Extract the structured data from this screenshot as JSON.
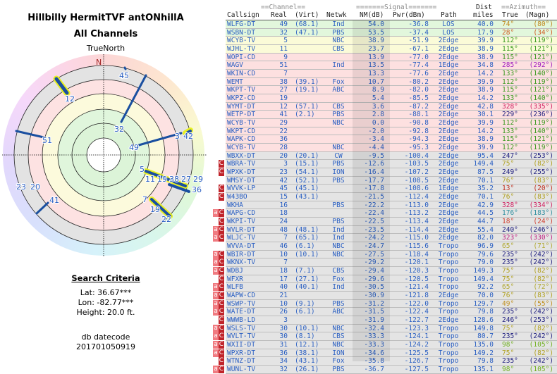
{
  "left": {
    "title": "Hillbilly HermitTVF antONhillA",
    "subtitle": "All Channels",
    "compass_label": "TrueNorth",
    "north": "N",
    "search_title": "Search Criteria",
    "lat": "Lat: 36.67***",
    "lon": "Lon: -82.77***",
    "height": "Height: 20.0 ft.",
    "db_label": "db datecode",
    "db_code": "201701050919",
    "plot_labels": [
      "45",
      "12",
      "32",
      "51",
      "49",
      "3",
      "42",
      "5",
      "11",
      "19",
      "38",
      "27",
      "29",
      "36",
      "7",
      "19",
      "22",
      "23",
      "20",
      "41"
    ]
  },
  "table": {
    "header": {
      "channel": "==Channel==",
      "signal": "=======Signal=======",
      "dist": "Dist",
      "azimuth": "==Azimuth==",
      "callsign": "Callsign",
      "real": "Real",
      "virt": "(Virt)",
      "netwk": "Netwk",
      "nm": "NM(dB)",
      "pwr": "Pwr(dBm)",
      "path": "Path",
      "miles": "miles",
      "true": "True",
      "magn": "(Magn)"
    },
    "rows": [
      [
        "",
        "WLFG-DT",
        "49",
        "(68.1)",
        "Ind",
        "54.0",
        "-36.8",
        "LOS",
        "40.0",
        "74°",
        "(80°)",
        "g",
        "#c08a20"
      ],
      [
        "",
        "WSBN-DT",
        "32",
        "(47.1)",
        "PBS",
        "53.5",
        "-37.4",
        "LOS",
        "17.9",
        "28°",
        "(34°)",
        "g",
        "#d05a20"
      ],
      [
        "",
        "WCYB-TV",
        "5",
        "",
        "NBC",
        "38.9",
        "-51.9",
        "2Edge",
        "39.9",
        "112°",
        "(119°)",
        "y",
        "#3a9a20"
      ],
      [
        "",
        "WJHL-TV",
        "11",
        "",
        "CBS",
        "23.7",
        "-67.1",
        "2Edge",
        "38.9",
        "115°",
        "(121°)",
        "y",
        "#3a9a20"
      ],
      [
        "",
        "WOPI-CD",
        "9",
        "",
        "",
        "13.9",
        "-77.0",
        "2Edge",
        "38.9",
        "115°",
        "(121°)",
        "p",
        "#3a9a20"
      ],
      [
        "",
        "WAGV",
        "51",
        "",
        "Ind",
        "13.5",
        "-77.4",
        "1Edge",
        "34.8",
        "285°",
        "(292°)",
        "p",
        "#a020c0"
      ],
      [
        "",
        "WKIN-CD",
        "7",
        "",
        "",
        "13.3",
        "-77.6",
        "2Edge",
        "14.2",
        "133°",
        "(140°)",
        "p",
        "#3a9a20"
      ],
      [
        "",
        "WEMT",
        "38",
        "(39.1)",
        "Fox",
        "10.7",
        "-80.2",
        "2Edge",
        "39.9",
        "112°",
        "(119°)",
        "p",
        "#3a9a20"
      ],
      [
        "",
        "WKPT-TV",
        "27",
        "(19.1)",
        "ABC",
        "8.9",
        "-82.0",
        "2Edge",
        "38.9",
        "115°",
        "(121°)",
        "p",
        "#3a9a20"
      ],
      [
        "",
        "WKPZ-CD",
        "19",
        "",
        "",
        "5.4",
        "-85.5",
        "2Edge",
        "14.2",
        "133°",
        "(140°)",
        "p",
        "#3a9a20"
      ],
      [
        "",
        "WYMT-DT",
        "12",
        "(57.1)",
        "CBS",
        "3.6",
        "-87.2",
        "2Edge",
        "42.8",
        "328°",
        "(335°)",
        "p",
        "#d02060"
      ],
      [
        "",
        "WETP-DT",
        "41",
        "(2.1)",
        "PBS",
        "2.8",
        "-88.1",
        "2Edge",
        "30.1",
        "229°",
        "(236°)",
        "p",
        "#202080"
      ],
      [
        "",
        "WCYB-TV",
        "29",
        "",
        "NBC",
        "0.0",
        "-90.8",
        "2Edge",
        "39.9",
        "112°",
        "(119°)",
        "p",
        "#3a9a20"
      ],
      [
        "",
        "WKPT-CD",
        "22",
        "",
        "",
        "-2.0",
        "-92.8",
        "2Edge",
        "14.2",
        "133°",
        "(140°)",
        "p",
        "#3a9a20"
      ],
      [
        "",
        "WAPK-CD",
        "36",
        "",
        "",
        "-3.4",
        "-94.3",
        "2Edge",
        "38.9",
        "115°",
        "(121°)",
        "p",
        "#3a9a20"
      ],
      [
        "",
        "WCYB-TV",
        "28",
        "",
        "NBC",
        "-4.4",
        "-95.3",
        "2Edge",
        "39.9",
        "112°",
        "(119°)",
        "p",
        "#3a9a20"
      ],
      [
        "",
        "WBXX-DT",
        "20",
        "(20.1)",
        "CW",
        "-9.5",
        "-100.4",
        "2Edge",
        "95.4",
        "247°",
        "(253°)",
        "x",
        "#202080"
      ],
      [
        "C",
        "WBRA-TV",
        "3",
        "(15.1)",
        "PBS",
        "-12.6",
        "-103.5",
        "2Edge",
        "149.4",
        "75°",
        "(82°)",
        "x",
        "#b0a020"
      ],
      [
        "C",
        "WPXK-DT",
        "23",
        "(54.1)",
        "ION",
        "-16.4",
        "-107.2",
        "2Edge",
        "87.5",
        "249°",
        "(255°)",
        "x",
        "#202080"
      ],
      [
        "",
        "WMSY-DT",
        "42",
        "(52.1)",
        "PBS",
        "-17.7",
        "-108.5",
        "2Edge",
        "70.1",
        "76°",
        "(83°)",
        "x",
        "#b0a020"
      ],
      [
        "C",
        "WVVK-LP",
        "45",
        "(45.1)",
        "",
        "-17.8",
        "-108.6",
        "1Edge",
        "35.2",
        "13°",
        "(20°)",
        "x",
        "#c03020"
      ],
      [
        "C",
        "W43BO",
        "15",
        "(43.1)",
        "",
        "-21.5",
        "-112.4",
        "2Edge",
        "70.1",
        "76°",
        "(83°)",
        "x",
        "#b0a020"
      ],
      [
        "",
        "WKHA",
        "16",
        "",
        "PBS",
        "-22.2",
        "-113.0",
        "2Edge",
        "42.9",
        "328°",
        "(334°)",
        "x",
        "#d02060"
      ],
      [
        "aC",
        "WAPG-CD",
        "18",
        "",
        "",
        "-22.4",
        "-113.2",
        "2Edge",
        "44.5",
        "176°",
        "(183°)",
        "x",
        "#3090a0"
      ],
      [
        "C",
        "WKPI-TV",
        "24",
        "",
        "PBS",
        "-22.5",
        "-113.4",
        "2Edge",
        "44.7",
        "18°",
        "(24°)",
        "x",
        "#d04030"
      ],
      [
        "aC",
        "WVLR-DT",
        "48",
        "(48.1)",
        "Ind",
        "-23.5",
        "-114.4",
        "2Edge",
        "55.4",
        "240°",
        "(246°)",
        "x",
        "#202080"
      ],
      [
        "aC",
        "WLJC-TV",
        "7",
        "(65.1)",
        "Ind",
        "-24.2",
        "-115.0",
        "2Edge",
        "82.0",
        "323°",
        "(330°)",
        "x",
        "#c02080"
      ],
      [
        "",
        "WVVA-DT",
        "46",
        "(6.1)",
        "NBC",
        "-24.7",
        "-115.6",
        "Tropo",
        "96.9",
        "65°",
        "(71°)",
        "x",
        "#b0a830"
      ],
      [
        "aC",
        "WBIR-DT",
        "10",
        "(10.1)",
        "NBC",
        "-27.5",
        "-118.4",
        "Tropo",
        "79.6",
        "235°",
        "(242°)",
        "x",
        "#202080"
      ],
      [
        "aC",
        "WKNX-TV",
        "7",
        "",
        "",
        "-29.2",
        "-120.1",
        "Tropo",
        "79.0",
        "235°",
        "(242°)",
        "x",
        "#202080"
      ],
      [
        "aC",
        "WDBJ",
        "18",
        "(7.1)",
        "CBS",
        "-29.4",
        "-120.3",
        "Tropo",
        "149.3",
        "75°",
        "(82°)",
        "x",
        "#b0a020"
      ],
      [
        "C",
        "WFXR",
        "17",
        "(27.1)",
        "Fox",
        "-29.6",
        "-120.5",
        "Tropo",
        "149.4",
        "75°",
        "(82°)",
        "x",
        "#b0a020"
      ],
      [
        "aC",
        "WLFB",
        "40",
        "(40.1)",
        "Ind",
        "-30.5",
        "-121.4",
        "Tropo",
        "92.2",
        "65°",
        "(72°)",
        "x",
        "#b0a830"
      ],
      [
        "aC",
        "WAPW-CD",
        "21",
        "",
        "",
        "-30.9",
        "-121.8",
        "2Edge",
        "70.0",
        "76°",
        "(83°)",
        "x",
        "#b0a020"
      ],
      [
        "aC",
        "WSWP-TV",
        "10",
        "(9.1)",
        "PBS",
        "-31.2",
        "-122.0",
        "Tropo",
        "129.7",
        "49°",
        "(55°)",
        "x",
        "#c09020"
      ],
      [
        "aC",
        "WATE-DT",
        "26",
        "(6.1)",
        "ABC",
        "-31.5",
        "-122.4",
        "Tropo",
        "79.8",
        "235°",
        "(242°)",
        "x",
        "#202080"
      ],
      [
        "C",
        "WWWB-LD",
        "3",
        "",
        "",
        "-31.9",
        "-122.7",
        "2Edge",
        "128.6",
        "246°",
        "(253°)",
        "x",
        "#202080"
      ],
      [
        "aC",
        "WSLS-TV",
        "30",
        "(10.1)",
        "NBC",
        "-32.4",
        "-123.3",
        "Tropo",
        "149.8",
        "75°",
        "(82°)",
        "x",
        "#b0a020"
      ],
      [
        "aC",
        "WVLT-TV",
        "30",
        "(8.1)",
        "CBS",
        "-33.3",
        "-124.1",
        "Tropo",
        "80.7",
        "235°",
        "(242°)",
        "x",
        "#202080"
      ],
      [
        "aC",
        "WXII-DT",
        "31",
        "(12.1)",
        "NBC",
        "-33.3",
        "-124.2",
        "Tropo",
        "135.0",
        "98°",
        "(105°)",
        "x",
        "#70b020"
      ],
      [
        "aC",
        "WPXR-DT",
        "36",
        "(38.1)",
        "ION",
        "-34.6",
        "-125.5",
        "Tropo",
        "149.2",
        "75°",
        "(82°)",
        "x",
        "#b0a020"
      ],
      [
        "C",
        "WTNZ-DT",
        "34",
        "(43.1)",
        "Fox",
        "-35.8",
        "-126.7",
        "Tropo",
        "79.8",
        "235°",
        "(242°)",
        "x",
        "#202080"
      ],
      [
        "aC",
        "WUNL-TV",
        "32",
        "(26.1)",
        "PBS",
        "-36.7",
        "-127.5",
        "Tropo",
        "135.1",
        "98°",
        "(105°)",
        "x",
        "#70b020"
      ]
    ]
  }
}
